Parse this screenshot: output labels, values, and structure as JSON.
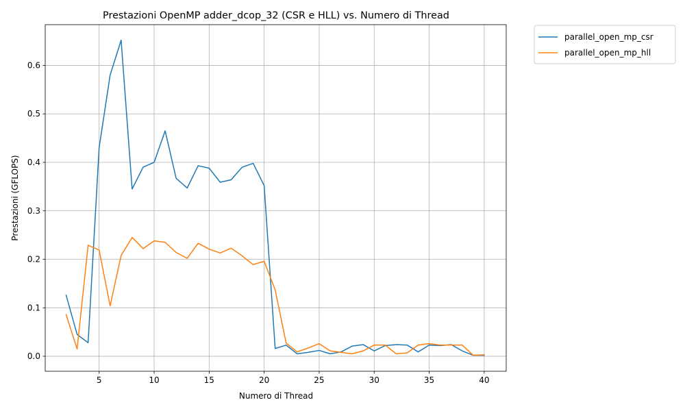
{
  "chart_data": {
    "type": "line",
    "title": "Prestazioni OpenMP adder_dcop_32 (CSR e HLL) vs. Numero di Thread",
    "xlabel": "Numero di Thread",
    "ylabel": "Prestazioni (GFLOPS)",
    "xlim": [
      0.1,
      42
    ],
    "ylim": [
      -0.031,
      0.684
    ],
    "grid": true,
    "legend_position": "outside top-right",
    "xticks": [
      5,
      10,
      15,
      20,
      25,
      30,
      35,
      40
    ],
    "xtick_labels": [
      "5",
      "10",
      "15",
      "20",
      "25",
      "30",
      "35",
      "40"
    ],
    "yticks": [
      0.0,
      0.1,
      0.2,
      0.3,
      0.4,
      0.5,
      0.6
    ],
    "ytick_labels": [
      "0.0",
      "0.1",
      "0.2",
      "0.3",
      "0.4",
      "0.5",
      "0.6"
    ],
    "x": [
      2,
      3,
      4,
      5,
      6,
      7,
      8,
      9,
      10,
      11,
      12,
      13,
      14,
      15,
      16,
      17,
      18,
      19,
      20,
      21,
      22,
      23,
      24,
      25,
      26,
      27,
      28,
      29,
      30,
      31,
      32,
      33,
      34,
      35,
      36,
      37,
      38,
      39,
      40
    ],
    "series": [
      {
        "name": "parallel_open_mp_csr",
        "color": "#1f77b4",
        "values": [
          0.126,
          0.045,
          0.028,
          0.43,
          0.58,
          0.652,
          0.345,
          0.39,
          0.4,
          0.465,
          0.367,
          0.347,
          0.393,
          0.388,
          0.359,
          0.364,
          0.39,
          0.398,
          0.352,
          0.016,
          0.023,
          0.005,
          0.008,
          0.012,
          0.005,
          0.009,
          0.021,
          0.024,
          0.011,
          0.022,
          0.024,
          0.023,
          0.009,
          0.023,
          0.022,
          0.024,
          0.011,
          0.002,
          0.002
        ]
      },
      {
        "name": "parallel_open_mp_hll",
        "color": "#ff7f0e",
        "values": [
          0.086,
          0.015,
          0.229,
          0.219,
          0.104,
          0.208,
          0.245,
          0.222,
          0.238,
          0.235,
          0.214,
          0.202,
          0.233,
          0.221,
          0.213,
          0.223,
          0.207,
          0.189,
          0.196,
          0.137,
          0.027,
          0.009,
          0.017,
          0.026,
          0.011,
          0.008,
          0.005,
          0.011,
          0.023,
          0.023,
          0.005,
          0.007,
          0.023,
          0.026,
          0.023,
          0.023,
          0.023,
          0.002,
          0.003
        ]
      }
    ]
  }
}
